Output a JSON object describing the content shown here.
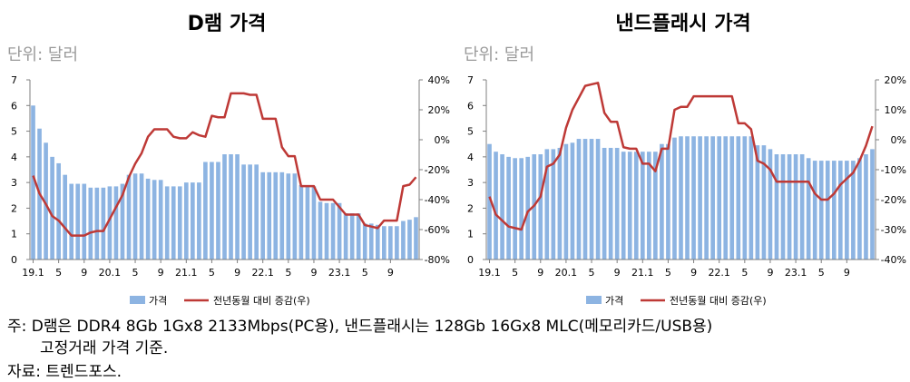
{
  "colors": {
    "bar": "#8db4e2",
    "line": "#be3936",
    "axis": "#7f7f7f"
  },
  "chart_data": [
    {
      "type": "bar",
      "title": "D램 가격",
      "unit_label": "단위: 달러",
      "left_axis": {
        "ticks": [
          "0",
          "1",
          "2",
          "3",
          "4",
          "5",
          "6",
          "7"
        ],
        "ylim": [
          0,
          7
        ]
      },
      "right_axis": {
        "ticks": [
          "-80%",
          "-60%",
          "-40%",
          "-20%",
          "0%",
          "20%",
          "40%"
        ],
        "ylim": [
          -80,
          40
        ]
      },
      "x_tick_labels": [
        {
          "index": 0,
          "label": "19.1"
        },
        {
          "index": 4,
          "label": "5"
        },
        {
          "index": 8,
          "label": "9"
        },
        {
          "index": 12,
          "label": "20.1"
        },
        {
          "index": 16,
          "label": "5"
        },
        {
          "index": 20,
          "label": "9"
        },
        {
          "index": 24,
          "label": "21.1"
        },
        {
          "index": 28,
          "label": "5"
        },
        {
          "index": 32,
          "label": "9"
        },
        {
          "index": 36,
          "label": "22.1"
        },
        {
          "index": 40,
          "label": "5"
        },
        {
          "index": 44,
          "label": "9"
        },
        {
          "index": 48,
          "label": "23.1"
        },
        {
          "index": 52,
          "label": "5"
        },
        {
          "index": 56,
          "label": "9"
        }
      ],
      "series": [
        {
          "name": "가격",
          "kind": "bar",
          "values": [
            6.0,
            5.1,
            4.55,
            4.0,
            3.75,
            3.3,
            2.95,
            2.95,
            2.95,
            2.8,
            2.8,
            2.8,
            2.85,
            2.85,
            2.95,
            3.3,
            3.35,
            3.35,
            3.15,
            3.1,
            3.1,
            2.85,
            2.85,
            2.85,
            3.0,
            3.0,
            3.0,
            3.8,
            3.8,
            3.8,
            4.1,
            4.1,
            4.1,
            3.7,
            3.7,
            3.7,
            3.4,
            3.4,
            3.4,
            3.4,
            3.35,
            3.35,
            2.9,
            2.85,
            2.85,
            2.25,
            2.2,
            2.2,
            2.2,
            1.8,
            1.8,
            1.8,
            1.4,
            1.4,
            1.35,
            1.3,
            1.3,
            1.3,
            1.5,
            1.55,
            1.65
          ]
        },
        {
          "name": "전년동월 대비 증감(우)",
          "kind": "line",
          "values": [
            -24,
            -36,
            -43,
            -51,
            -54,
            -59,
            -64,
            -64,
            -64,
            -62,
            -61,
            -61,
            -53,
            -45,
            -37,
            -25,
            -16,
            -9,
            2,
            7,
            7,
            7,
            2,
            1,
            1,
            5,
            3,
            2,
            16,
            15,
            15,
            31,
            31,
            31,
            30,
            30,
            14,
            14,
            14,
            -5,
            -11,
            -11,
            -31,
            -31,
            -31,
            -40,
            -40,
            -40,
            -45,
            -50,
            -50,
            -50,
            -57,
            -58,
            -59,
            -54,
            -54,
            -54,
            -31,
            -30,
            -25
          ]
        }
      ]
    },
    {
      "type": "bar",
      "title": "낸드플래시 가격",
      "unit_label": "단위: 달러",
      "left_axis": {
        "ticks": [
          "0",
          "1",
          "2",
          "3",
          "4",
          "5",
          "6",
          "7"
        ],
        "ylim": [
          0,
          7
        ]
      },
      "right_axis": {
        "ticks": [
          "-40%",
          "-30%",
          "-20%",
          "-10%",
          "0%",
          "10%",
          "20%"
        ],
        "ylim": [
          -40,
          20
        ]
      },
      "x_tick_labels": [
        {
          "index": 0,
          "label": "19.1"
        },
        {
          "index": 4,
          "label": "5"
        },
        {
          "index": 8,
          "label": "9"
        },
        {
          "index": 12,
          "label": "20.1"
        },
        {
          "index": 16,
          "label": "5"
        },
        {
          "index": 20,
          "label": "9"
        },
        {
          "index": 24,
          "label": "21.1"
        },
        {
          "index": 28,
          "label": "5"
        },
        {
          "index": 32,
          "label": "9"
        },
        {
          "index": 36,
          "label": "22.1"
        },
        {
          "index": 40,
          "label": "5"
        },
        {
          "index": 44,
          "label": "9"
        },
        {
          "index": 48,
          "label": "23.1"
        },
        {
          "index": 52,
          "label": "5"
        },
        {
          "index": 56,
          "label": "9"
        }
      ],
      "series": [
        {
          "name": "가격",
          "kind": "bar",
          "values": [
            4.5,
            4.2,
            4.1,
            4.0,
            3.95,
            3.95,
            4.0,
            4.1,
            4.1,
            4.3,
            4.3,
            4.35,
            4.5,
            4.55,
            4.7,
            4.7,
            4.7,
            4.7,
            4.35,
            4.35,
            4.35,
            4.2,
            4.2,
            4.2,
            4.2,
            4.2,
            4.2,
            4.5,
            4.5,
            4.75,
            4.8,
            4.8,
            4.8,
            4.8,
            4.8,
            4.8,
            4.8,
            4.8,
            4.8,
            4.8,
            4.8,
            4.8,
            4.45,
            4.45,
            4.3,
            4.1,
            4.1,
            4.1,
            4.1,
            4.1,
            3.95,
            3.85,
            3.85,
            3.85,
            3.85,
            3.85,
            3.85,
            3.85,
            3.95,
            4.1,
            4.3
          ]
        },
        {
          "name": "전년동월 대비 증감(우)",
          "kind": "line",
          "values": [
            -19,
            -25,
            -27,
            -29,
            -29.5,
            -30,
            -24,
            -22,
            -19,
            -9,
            -8,
            -5,
            4,
            10,
            14,
            18,
            18.5,
            19,
            9,
            6,
            6,
            -2.5,
            -3,
            -3,
            -8,
            -8,
            -10.5,
            -3,
            -3,
            10,
            11,
            11,
            14.5,
            14.5,
            14.5,
            14.5,
            14.5,
            14.5,
            14.5,
            5.5,
            5.5,
            3.5,
            -7,
            -8,
            -10,
            -14,
            -14,
            -14,
            -14,
            -14,
            -14,
            -18,
            -20,
            -20,
            -18,
            -15,
            -13,
            -11,
            -7,
            -2,
            4.5
          ]
        }
      ]
    }
  ],
  "notes": {
    "line1": "주: D램은 DDR4 8Gb 1Gx8 2133Mbps(PC용), 낸드플래시는 128Gb 16Gx8 MLC(메모리카드/USB용)",
    "line2": "고정거래 가격 기준.",
    "line3": "자료: 트렌드포스."
  }
}
